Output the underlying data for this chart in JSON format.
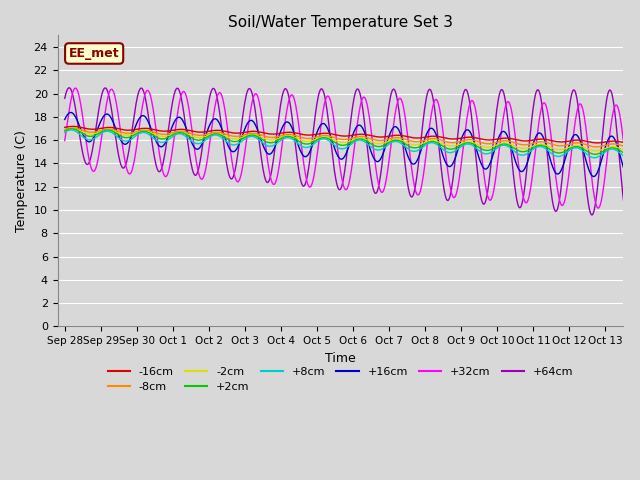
{
  "title": "Soil/Water Temperature Set 3",
  "xlabel": "Time",
  "ylabel": "Temperature (C)",
  "ylim": [
    0,
    25
  ],
  "yticks": [
    0,
    2,
    4,
    6,
    8,
    10,
    12,
    14,
    16,
    18,
    20,
    22,
    24
  ],
  "xtick_labels": [
    "Sep 28",
    "Sep 29",
    "Sep 30",
    "Oct 1",
    "Oct 2",
    "Oct 3",
    "Oct 4",
    "Oct 5",
    "Oct 6",
    "Oct 7",
    "Oct 8",
    "Oct 9",
    "Oct 10",
    "Oct 11",
    "Oct 12",
    "Oct 13"
  ],
  "xtick_positions": [
    0,
    1,
    2,
    3,
    4,
    5,
    6,
    7,
    8,
    9,
    10,
    11,
    12,
    13,
    14,
    15
  ],
  "series_colors": {
    "-16cm": "#dd0000",
    "-8cm": "#ff8800",
    "-2cm": "#dddd00",
    "+2cm": "#00cc00",
    "+8cm": "#00cccc",
    "+16cm": "#0000cc",
    "+32cm": "#ff00ff",
    "+64cm": "#9900bb"
  },
  "annotation_text": "EE_met",
  "background_color": "#d8d8d8",
  "plot_bg_color": "#d8d8d8",
  "grid_color": "#ffffff"
}
